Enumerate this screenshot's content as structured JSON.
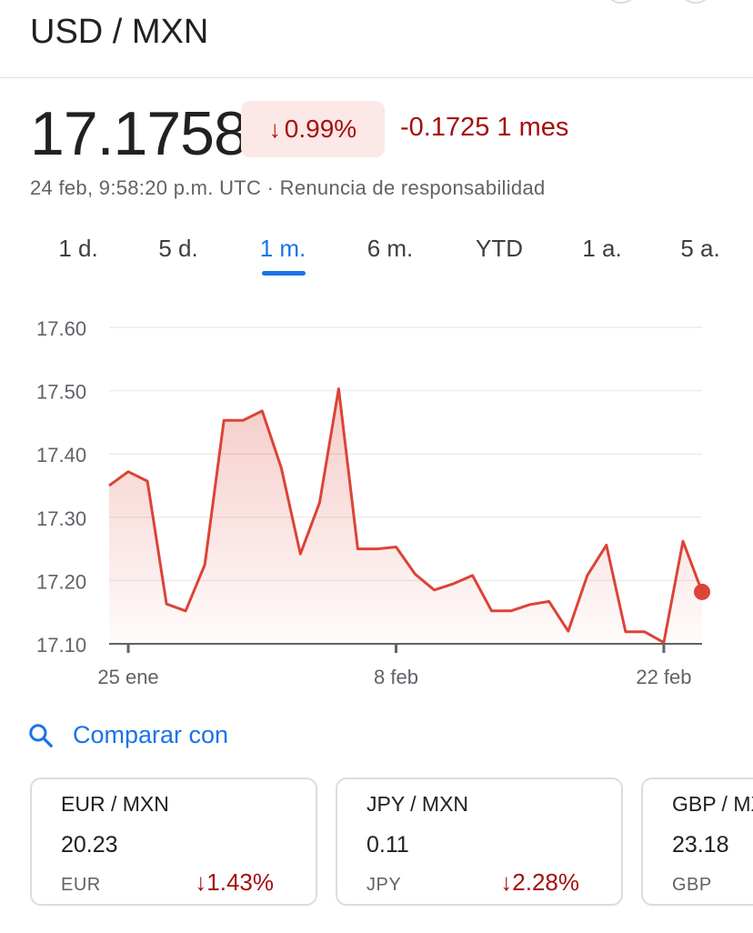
{
  "pair_title": "USD / MXN",
  "price": "17.1758",
  "change_pct": "0.99%",
  "change_abs": "-0.1725 1 mes",
  "timestamp": "24 feb, 9:58:20 p.m. UTC · Renuncia de responsabilidad",
  "tabs": [
    {
      "label": "1 d.",
      "active": false
    },
    {
      "label": "5 d.",
      "active": false
    },
    {
      "label": "1 m.",
      "active": true
    },
    {
      "label": "6 m.",
      "active": false
    },
    {
      "label": "YTD",
      "active": false
    },
    {
      "label": "1 a.",
      "active": false
    },
    {
      "label": "5 a.",
      "active": false
    }
  ],
  "chart_data": {
    "type": "area",
    "y_ticks": [
      "17.60",
      "17.50",
      "17.40",
      "17.30",
      "17.20",
      "17.10"
    ],
    "ylim": [
      17.1,
      17.6
    ],
    "x_tick_labels": [
      "25 ene",
      "8 feb",
      "22 feb"
    ],
    "x_tick_indices": [
      1,
      15,
      29
    ],
    "values": [
      17.35,
      17.372,
      17.357,
      17.163,
      17.152,
      17.225,
      17.453,
      17.453,
      17.468,
      17.378,
      17.242,
      17.323,
      17.503,
      17.25,
      17.25,
      17.253,
      17.21,
      17.185,
      17.195,
      17.208,
      17.152,
      17.152,
      17.162,
      17.167,
      17.12,
      17.208,
      17.256,
      17.119,
      17.119,
      17.102,
      17.262,
      17.182
    ],
    "line_color": "#db4437",
    "grid": true
  },
  "compare": {
    "label": "Comparar con"
  },
  "cards": [
    {
      "pair": "EUR / MXN",
      "price": "20.23",
      "currency": "EUR",
      "change": "1.43%"
    },
    {
      "pair": "JPY / MXN",
      "price": "0.11",
      "currency": "JPY",
      "change": "2.28%"
    },
    {
      "pair": "GBP / MXN",
      "price": "23.18",
      "currency": "GBP",
      "change": ""
    }
  ],
  "colors": {
    "accent": "#1a73e8",
    "negative": "#a50e0e",
    "negative_bg": "#fce8e6"
  },
  "icons": {
    "down_arrow": "↓",
    "search": "search-icon"
  }
}
